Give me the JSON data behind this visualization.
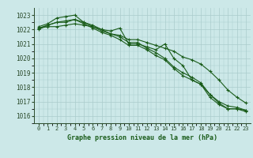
{
  "title": "Graphe pression niveau de la mer (hPa)",
  "background_color": "#cce8e8",
  "grid_color": "#aacccc",
  "line_color": "#1a5c1a",
  "marker_color": "#1a5c1a",
  "xlim": [
    -0.5,
    23.5
  ],
  "ylim": [
    1015.5,
    1023.5
  ],
  "yticks": [
    1016,
    1017,
    1018,
    1019,
    1020,
    1021,
    1022,
    1023
  ],
  "xticks": [
    0,
    1,
    2,
    3,
    4,
    5,
    6,
    7,
    8,
    9,
    10,
    11,
    12,
    13,
    14,
    15,
    16,
    17,
    18,
    19,
    20,
    21,
    22,
    23
  ],
  "series": [
    [
      1022.1,
      1022.3,
      1022.5,
      1022.6,
      1022.7,
      1022.5,
      1022.3,
      1022.0,
      1021.9,
      1022.1,
      1021.0,
      1021.0,
      1020.8,
      1020.6,
      1021.0,
      1020.0,
      1019.5,
      1018.5,
      1018.2,
      1017.5,
      1016.9,
      1016.5,
      1016.5,
      1016.4
    ],
    [
      1022.2,
      1022.4,
      1022.8,
      1022.9,
      1023.0,
      1022.5,
      1022.2,
      1022.0,
      1021.7,
      1021.5,
      1021.1,
      1021.1,
      1020.7,
      1020.4,
      1020.0,
      1019.4,
      1019.0,
      1018.7,
      1018.3,
      1017.5,
      1017.0,
      1016.7,
      1016.6,
      1016.4
    ],
    [
      1022.0,
      1022.3,
      1022.5,
      1022.5,
      1022.7,
      1022.4,
      1022.1,
      1021.8,
      1021.6,
      1021.3,
      1020.9,
      1020.9,
      1020.6,
      1020.2,
      1019.9,
      1019.3,
      1018.8,
      1018.5,
      1018.2,
      1017.3,
      1016.8,
      1016.5,
      1016.5,
      1016.3
    ],
    [
      1022.1,
      1022.2,
      1022.2,
      1022.3,
      1022.4,
      1022.3,
      1022.2,
      1021.9,
      1021.7,
      1021.6,
      1021.3,
      1021.3,
      1021.1,
      1020.9,
      1020.7,
      1020.5,
      1020.1,
      1019.9,
      1019.6,
      1019.1,
      1018.5,
      1017.8,
      1017.3,
      1016.9
    ]
  ]
}
